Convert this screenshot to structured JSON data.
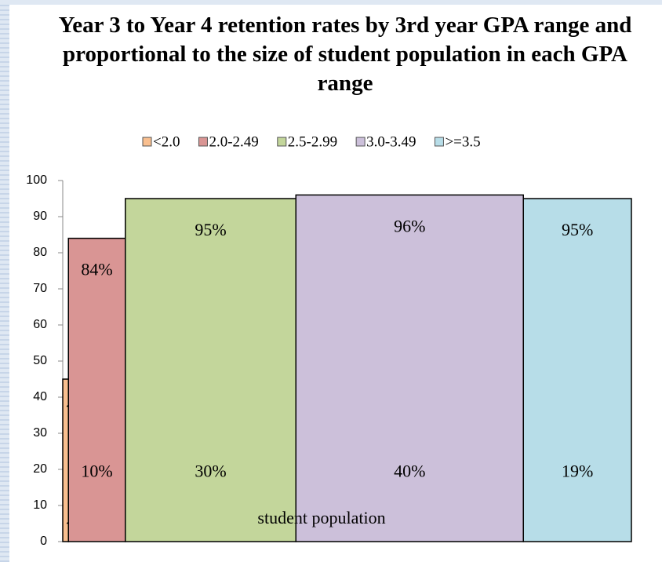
{
  "chart_data": {
    "type": "variable-width-bar",
    "title": "Year 3 to Year 4 retention rates by 3rd year GPA range and proportional to the size of student population in each GPA range",
    "categories": [
      "<2.0",
      "2.0-2.49",
      "2.5-2.99",
      "3.0-3.49",
      ">=3.5"
    ],
    "colors": [
      "#f9bf8f",
      "#d99594",
      "#c3d69b",
      "#ccc0da",
      "#b7dde8"
    ],
    "values": [
      45,
      84,
      95,
      96,
      95
    ],
    "value_labels": [
      "45%",
      "84%",
      "95%",
      "96%",
      "95%"
    ],
    "widths": [
      1,
      10,
      30,
      40,
      19
    ],
    "width_labels": [
      "1%",
      "10%",
      "30%",
      "40%",
      "19%"
    ],
    "xlabel": "student population",
    "ylim": [
      0,
      100
    ],
    "yticks": [
      0,
      10,
      20,
      30,
      40,
      50,
      60,
      70,
      80,
      90,
      100
    ],
    "legend": "top"
  }
}
